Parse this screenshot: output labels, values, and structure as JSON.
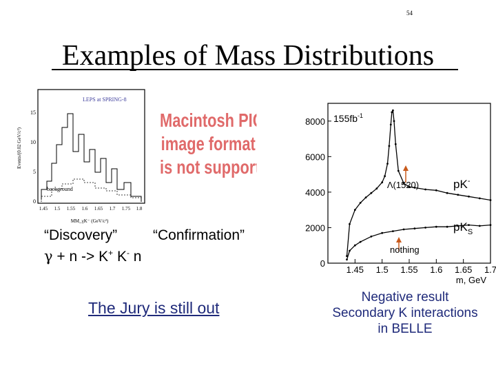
{
  "page_number": "54",
  "title": "Examples of Mass Distributions",
  "left_plot": {
    "banner": "LEPS at SPRING-8",
    "ylabel": "Events/(0.02 GeV/c²)",
    "xlabel": "MM_γK⁻ (GeV/c²)",
    "background_label": "background",
    "y_ticks": [
      "0",
      "5",
      "10",
      "15"
    ],
    "x_ticks": [
      "1.45",
      "1.5",
      "1.55",
      "1.6",
      "1.65",
      "1.7",
      "1.75",
      "1.8"
    ]
  },
  "placeholder": {
    "line1": "Macintosh PICT",
    "line2": "image format",
    "line3": "is not supported"
  },
  "captions": {
    "discovery": "“Discovery”",
    "confirmation": "“Confirmation”",
    "reaction_gamma": "γ",
    "reaction_rest": " + n -> K",
    "reaction_plus": "+",
    "reaction_k": " K",
    "reaction_minus": "-",
    "reaction_n": " n"
  },
  "jury": "The Jury is still out",
  "chart_data": {
    "type": "line",
    "title": "",
    "xlabel": "m, GeV",
    "ylabel": "",
    "xlim": [
      1.4,
      1.7
    ],
    "ylim": [
      0,
      9000
    ],
    "x_ticks": [
      "1.45",
      "1.5",
      "1.55",
      "1.6",
      "1.65",
      "1.7"
    ],
    "y_ticks": [
      "0",
      "2000",
      "4000",
      "6000",
      "8000"
    ],
    "annotations": {
      "luminosity": "155fb",
      "luminosity_exp": "-1",
      "lambda": "Λ(1520)",
      "nothing": "nothing",
      "pk_minus_base": "p",
      "pk_minus_k": "K",
      "pk_minus_sup": "-",
      "pks_base": "p",
      "pks_k": "K",
      "pks_sub": "S"
    },
    "series": [
      {
        "x": [
          1.435,
          1.44,
          1.45,
          1.46,
          1.47,
          1.48,
          1.49,
          1.5,
          1.505,
          1.51,
          1.513,
          1.516,
          1.518,
          1.52,
          1.522,
          1.525,
          1.53,
          1.54,
          1.55,
          1.56,
          1.58,
          1.6,
          1.62,
          1.64,
          1.66,
          1.68,
          1.7
        ],
        "values": [
          400,
          2200,
          3000,
          3400,
          3700,
          3950,
          4200,
          4550,
          4900,
          5600,
          6600,
          7800,
          8500,
          8600,
          8000,
          6700,
          5200,
          4500,
          4300,
          4250,
          4150,
          4100,
          3950,
          3850,
          3750,
          3650,
          3550
        ]
      },
      {
        "x": [
          1.435,
          1.44,
          1.45,
          1.46,
          1.48,
          1.5,
          1.52,
          1.54,
          1.56,
          1.58,
          1.6,
          1.62,
          1.64,
          1.66,
          1.68,
          1.7
        ],
        "values": [
          200,
          700,
          1000,
          1200,
          1500,
          1700,
          1800,
          1900,
          1950,
          2000,
          2050,
          2050,
          2100,
          2150,
          2100,
          2150
        ]
      }
    ]
  },
  "result": {
    "line1": "Negative result",
    "line2": "Secondary K interactions",
    "line3": "in BELLE"
  },
  "colors": {
    "placeholder_red": "#e06a6a",
    "text_blue": "#1f2a7a",
    "banner_blue": "#3a3a9a"
  }
}
